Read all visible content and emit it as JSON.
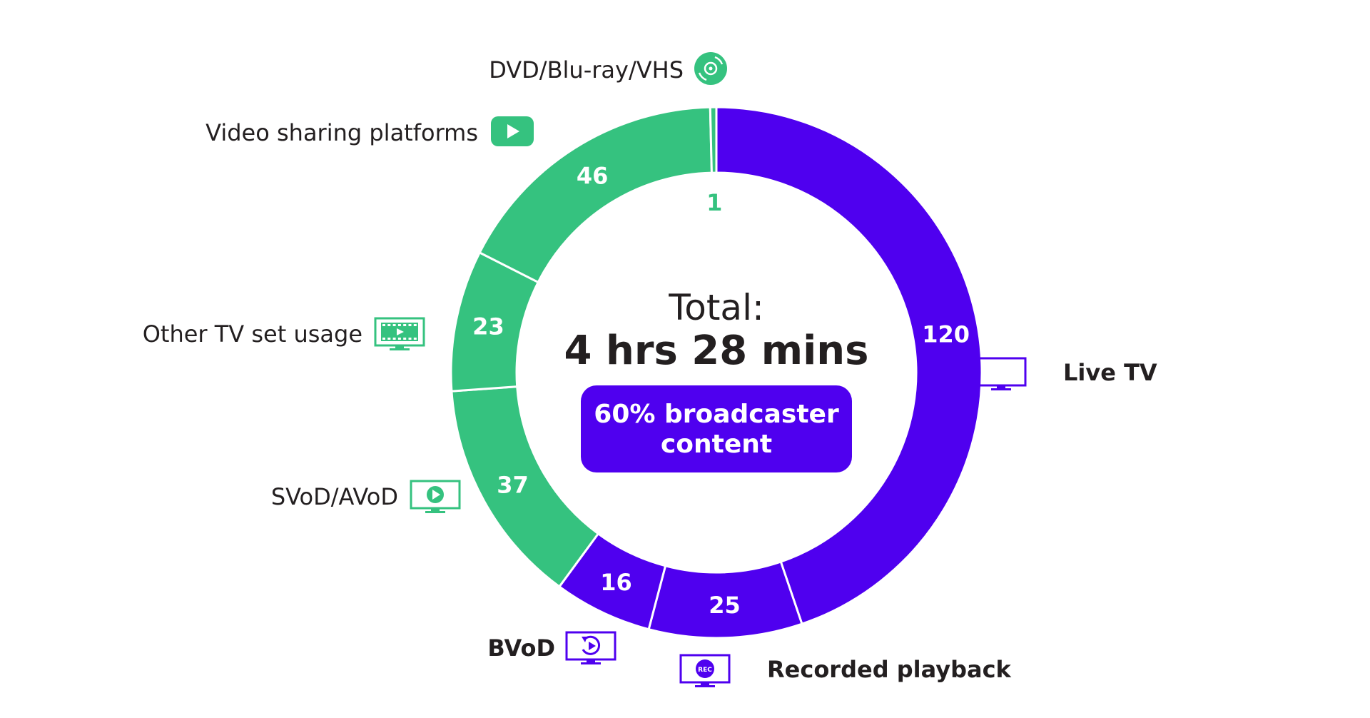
{
  "chart_data": {
    "type": "pie",
    "title": "",
    "center": {
      "total_label": "Total:",
      "total_value": "4 hrs 28 mins",
      "badge_line1": "60% broadcaster",
      "badge_line2": "content"
    },
    "segments": [
      {
        "name": "Live TV",
        "value": 120,
        "color": "#4f00ef",
        "icon": "tv-icon",
        "label_bold": true
      },
      {
        "name": "Recorded playback",
        "value": 25,
        "color": "#4f00ef",
        "icon": "rec-tv-icon",
        "label_bold": true
      },
      {
        "name": "BVoD",
        "value": 16,
        "color": "#4f00ef",
        "icon": "replay-tv-icon",
        "label_bold": true
      },
      {
        "name": "SVoD/AVoD",
        "value": 37,
        "color": "#35c27f",
        "icon": "play-tv-icon",
        "label_bold": false
      },
      {
        "name": "Other TV set usage",
        "value": 23,
        "color": "#35c27f",
        "icon": "film-tv-icon",
        "label_bold": false
      },
      {
        "name": "Video sharing platforms",
        "value": 46,
        "color": "#35c27f",
        "icon": "play-button-icon",
        "label_bold": false
      },
      {
        "name": "DVD/Blu-ray/VHS",
        "value": 1,
        "color": "#35c27f",
        "icon": "disc-icon",
        "label_bold": false
      }
    ],
    "colors": {
      "broadcaster": "#4f00ef",
      "other": "#35c27f"
    },
    "legend": "none"
  }
}
